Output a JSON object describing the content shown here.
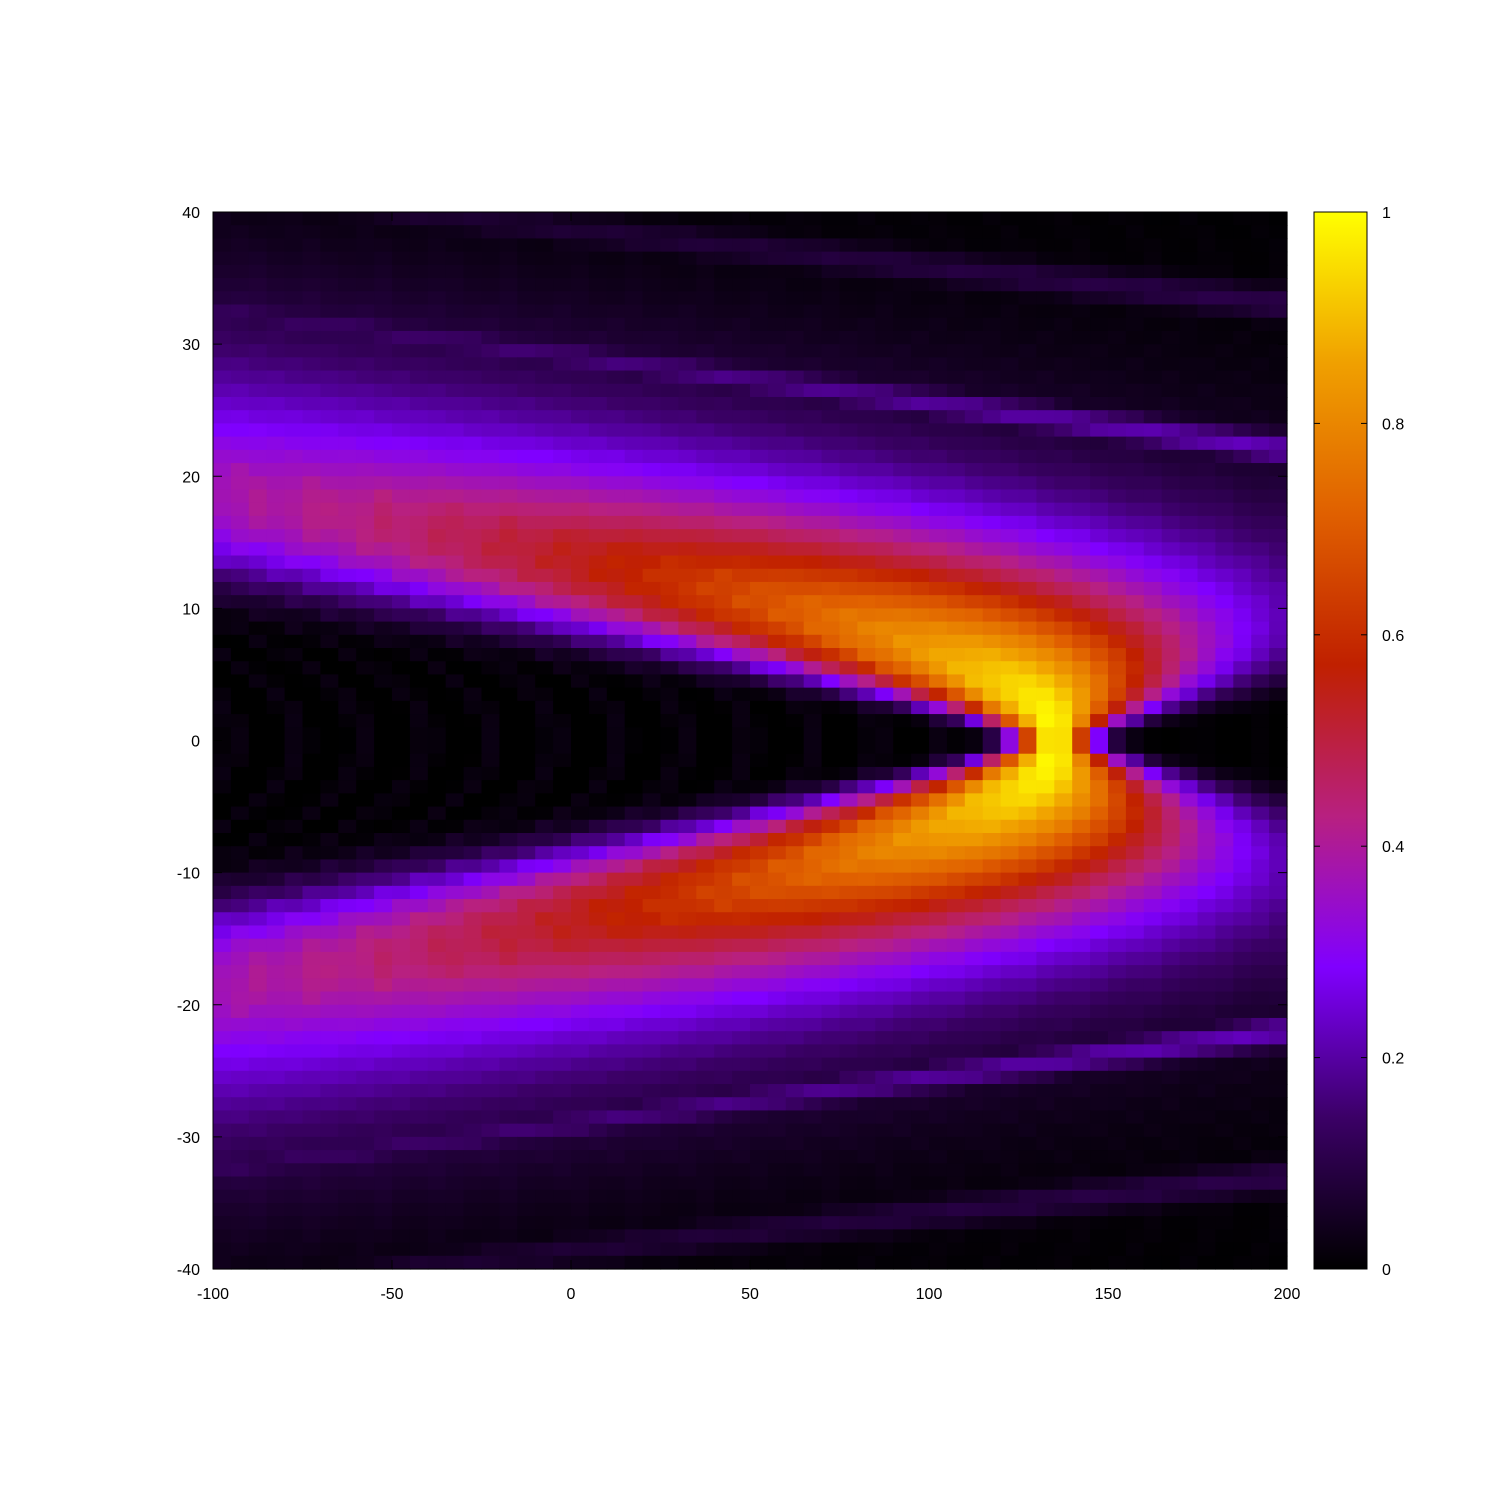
{
  "chart_data": {
    "type": "heatmap",
    "title": "",
    "xlabel": "",
    "ylabel": "",
    "xlim": [
      -100,
      200
    ],
    "ylim": [
      -40,
      40
    ],
    "x_ticks": [
      "-100",
      "-50",
      "0",
      "50",
      "100",
      "150",
      "200"
    ],
    "y_ticks": [
      "-40",
      "-30",
      "-20",
      "-10",
      "0",
      "10",
      "20",
      "30",
      "40"
    ],
    "colorbar": {
      "range": [
        0,
        1
      ],
      "ticks": [
        "0",
        "0.2",
        "0.4",
        "0.6",
        "0.8",
        "1"
      ],
      "colormap": [
        "#000000",
        "#3b0066",
        "#8000ff",
        "#b82080",
        "#c02000",
        "#e06000",
        "#f0a000",
        "#ffff00"
      ]
    },
    "features": [
      {
        "name": "main-arc",
        "shape": "parabola",
        "vertex": [
          135,
          0
        ],
        "opening": "left",
        "passes_through": [
          [
            -100,
            21.5
          ],
          [
            -100,
            -21.5
          ]
        ],
        "peak_value": 1.0
      },
      {
        "name": "upper-band-1",
        "shape": "line",
        "from": [
          -100,
          32.5
        ],
        "to": [
          200,
          22
        ],
        "value": 0.22
      },
      {
        "name": "upper-band-2",
        "shape": "line",
        "from": [
          -50,
          40
        ],
        "to": [
          200,
          33
        ],
        "value": 0.1
      },
      {
        "name": "lower-band-1",
        "shape": "line",
        "from": [
          -100,
          -32.5
        ],
        "to": [
          200,
          -22
        ],
        "value": 0.22
      },
      {
        "name": "lower-band-2",
        "shape": "line",
        "from": [
          -50,
          -40
        ],
        "to": [
          200,
          -33
        ],
        "value": 0.1
      }
    ],
    "grid": false,
    "legend": "none"
  }
}
